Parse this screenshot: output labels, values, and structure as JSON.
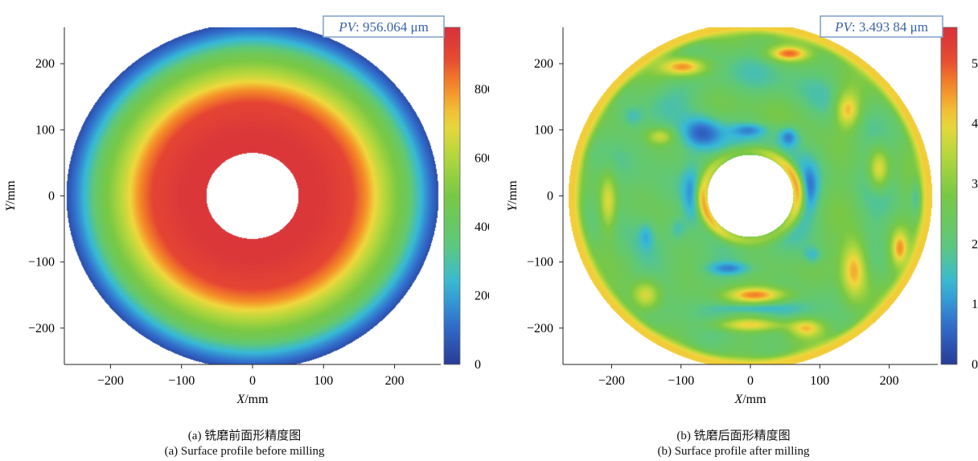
{
  "panels": [
    {
      "chart_data": {
        "type": "heatmap",
        "title": "",
        "xlabel": "X/mm",
        "ylabel": "Y/mm",
        "xlim": [
          -265,
          265
        ],
        "ylim": [
          -255,
          255
        ],
        "xticks": [
          -200,
          -100,
          0,
          100,
          200
        ],
        "yticks": [
          -200,
          -100,
          0,
          100,
          200
        ],
        "grid": false,
        "outer_radius_mm": 262,
        "inner_radius_mm": 65,
        "colorbar": {
          "min": 0,
          "max": 980,
          "ticks": [
            0,
            200,
            400,
            600,
            800
          ],
          "colormap": "jet"
        },
        "annotation": {
          "label": "PV",
          "value": ": 956.064 μm"
        },
        "radial_profile": [
          {
            "r": 65,
            "v": 960
          },
          {
            "r": 100,
            "v": 955
          },
          {
            "r": 140,
            "v": 900
          },
          {
            "r": 160,
            "v": 800
          },
          {
            "r": 180,
            "v": 650
          },
          {
            "r": 200,
            "v": 520
          },
          {
            "r": 215,
            "v": 440
          },
          {
            "r": 230,
            "v": 300
          },
          {
            "r": 245,
            "v": 170
          },
          {
            "r": 262,
            "v": 40
          }
        ]
      },
      "caption_cn": "(a) 铣磨前面形精度图",
      "caption_en": "(a) Surface profile before milling"
    },
    {
      "chart_data": {
        "type": "heatmap",
        "title": "",
        "xlabel": "X/mm",
        "ylabel": "Y/mm",
        "xlim": [
          -270,
          270
        ],
        "ylim": [
          -255,
          255
        ],
        "xticks": [
          -200,
          -100,
          0,
          100,
          200
        ],
        "yticks": [
          -200,
          -100,
          0,
          100,
          200
        ],
        "grid": false,
        "outer_radius_mm": 262,
        "inner_radius_mm": 62,
        "colorbar": {
          "min": 0,
          "max": 5.6,
          "ticks": [
            0,
            1,
            2,
            3,
            4,
            5
          ],
          "colormap": "jet"
        },
        "annotation": {
          "label": "PV",
          "value": ": 3.493 84 μm"
        },
        "background_level": 2.2,
        "features": [
          {
            "x": -95,
            "y": 195,
            "v": 4.6,
            "sx": 32,
            "sy": 14
          },
          {
            "x": 55,
            "y": 215,
            "v": 4.4,
            "sx": 28,
            "sy": 11
          },
          {
            "x": 140,
            "y": 130,
            "v": 4.5,
            "sx": 18,
            "sy": 28
          },
          {
            "x": 185,
            "y": 40,
            "v": 4.2,
            "sx": 14,
            "sy": 30
          },
          {
            "x": 150,
            "y": -110,
            "v": 4.8,
            "sx": 20,
            "sy": 45
          },
          {
            "x": 215,
            "y": -80,
            "v": 4.1,
            "sx": 12,
            "sy": 28
          },
          {
            "x": 10,
            "y": -150,
            "v": 4.5,
            "sx": 48,
            "sy": 12
          },
          {
            "x": 0,
            "y": -195,
            "v": 4.0,
            "sx": 55,
            "sy": 10
          },
          {
            "x": -150,
            "y": -150,
            "v": 4.0,
            "sx": 20,
            "sy": 22
          },
          {
            "x": -205,
            "y": -10,
            "v": 3.9,
            "sx": 12,
            "sy": 45
          },
          {
            "x": 80,
            "y": -200,
            "v": 3.9,
            "sx": 24,
            "sy": 14
          },
          {
            "x": -130,
            "y": 90,
            "v": 3.6,
            "sx": 18,
            "sy": 12
          },
          {
            "x": -70,
            "y": 95,
            "v": 0.3,
            "sx": 30,
            "sy": 26
          },
          {
            "x": 0,
            "y": 100,
            "v": 1.2,
            "sx": 28,
            "sy": 10
          },
          {
            "x": 55,
            "y": 90,
            "v": 0.7,
            "sx": 15,
            "sy": 16
          },
          {
            "x": -85,
            "y": 0,
            "v": 1.2,
            "sx": 14,
            "sy": 50
          },
          {
            "x": 85,
            "y": 10,
            "v": 1.0,
            "sx": 14,
            "sy": 35
          },
          {
            "x": -30,
            "y": -110,
            "v": 1.0,
            "sx": 32,
            "sy": 10
          },
          {
            "x": 90,
            "y": -90,
            "v": 1.2,
            "sx": 14,
            "sy": 14
          },
          {
            "x": -105,
            "y": -50,
            "v": 1.4,
            "sx": 12,
            "sy": 18
          },
          {
            "x": 0,
            "y": -170,
            "v": 1.3,
            "sx": 45,
            "sy": 7
          },
          {
            "x": -170,
            "y": 120,
            "v": 1.5,
            "sx": 15,
            "sy": 15
          },
          {
            "x": 240,
            "y": 0,
            "v": 1.3,
            "sx": 8,
            "sy": 30
          },
          {
            "x": -150,
            "y": -60,
            "v": 1.5,
            "sx": 10,
            "sy": 20
          }
        ],
        "inner_ring": {
          "r": 68,
          "width": 10,
          "v": 4.4
        },
        "outer_ring": {
          "r": 255,
          "width": 10,
          "v": 4.2
        }
      },
      "caption_cn": "(b) 铣磨后面形精度图",
      "caption_en": "(b) Surface profile after milling"
    }
  ],
  "colors": {
    "pv_box_border": "#7f9fc8",
    "pv_text": "#3a63a8"
  }
}
